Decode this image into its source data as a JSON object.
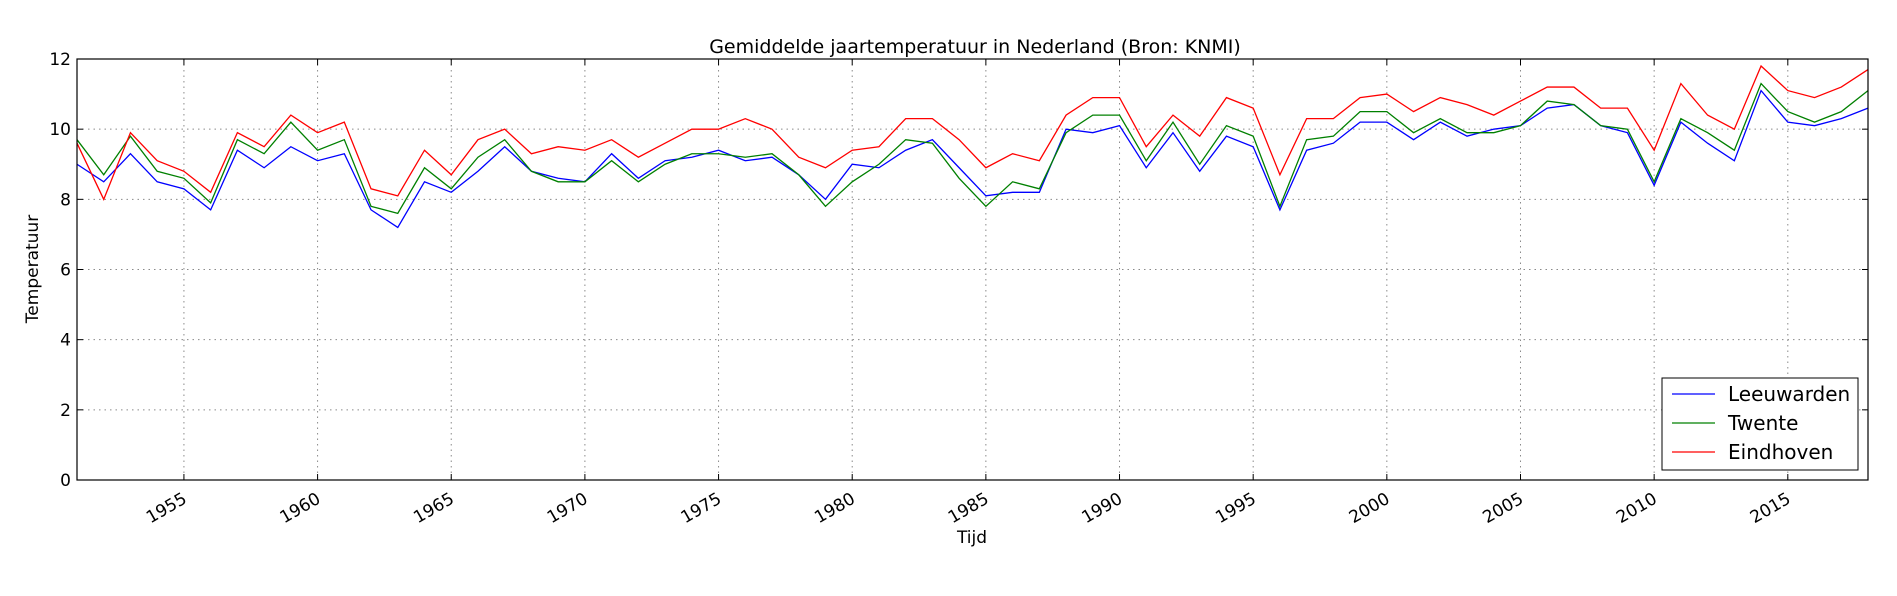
{
  "chart_data": {
    "type": "line",
    "title": "Gemiddelde jaartemperatuur in Nederland (Bron: KNMI)",
    "xlabel": "Tijd",
    "ylabel": "Temperatuur",
    "xlim": [
      1951,
      2018
    ],
    "ylim": [
      0,
      12
    ],
    "xticks": [
      1955,
      1960,
      1965,
      1970,
      1975,
      1980,
      1985,
      1990,
      1995,
      2000,
      2005,
      2010,
      2015
    ],
    "xtick_labels": [
      "1955",
      "1960",
      "1965",
      "1970",
      "1975",
      "1980",
      "1985",
      "1990",
      "1995",
      "2000",
      "2005",
      "2010",
      "2015"
    ],
    "yticks": [
      0,
      2,
      4,
      6,
      8,
      10,
      12
    ],
    "ytick_labels": [
      "0",
      "2",
      "4",
      "6",
      "8",
      "10",
      "12"
    ],
    "grid": true,
    "legend_position": "lower-right",
    "x": [
      1951,
      1952,
      1953,
      1954,
      1955,
      1956,
      1957,
      1958,
      1959,
      1960,
      1961,
      1962,
      1963,
      1964,
      1965,
      1966,
      1967,
      1968,
      1969,
      1970,
      1971,
      1972,
      1973,
      1974,
      1975,
      1976,
      1977,
      1978,
      1979,
      1980,
      1981,
      1982,
      1983,
      1984,
      1985,
      1986,
      1987,
      1988,
      1989,
      1990,
      1991,
      1992,
      1993,
      1994,
      1995,
      1996,
      1997,
      1998,
      1999,
      2000,
      2001,
      2002,
      2003,
      2004,
      2005,
      2006,
      2007,
      2008,
      2009,
      2010,
      2011,
      2012,
      2013,
      2014,
      2015,
      2016,
      2017,
      2018
    ],
    "series": [
      {
        "name": "Leeuwarden",
        "color": "#0000ff",
        "values": [
          9.0,
          8.5,
          9.3,
          8.5,
          8.3,
          7.7,
          9.4,
          8.9,
          9.5,
          9.1,
          9.3,
          7.7,
          7.2,
          8.5,
          8.2,
          8.8,
          9.5,
          8.8,
          8.6,
          8.5,
          9.3,
          8.6,
          9.1,
          9.2,
          9.4,
          9.1,
          9.2,
          8.7,
          8.0,
          9.0,
          8.9,
          9.4,
          9.7,
          8.9,
          8.1,
          8.2,
          8.2,
          10.0,
          9.9,
          10.1,
          8.9,
          9.9,
          8.8,
          9.8,
          9.5,
          7.7,
          9.4,
          9.6,
          10.2,
          10.2,
          9.7,
          10.2,
          9.8,
          10.0,
          10.1,
          10.6,
          10.7,
          10.1,
          9.9,
          8.4,
          10.2,
          9.6,
          9.1,
          11.1,
          10.2,
          10.1,
          10.3,
          10.6
        ]
      },
      {
        "name": "Twente",
        "color": "#008000",
        "values": [
          9.7,
          8.7,
          9.8,
          8.8,
          8.6,
          7.9,
          9.7,
          9.3,
          10.2,
          9.4,
          9.7,
          7.8,
          7.6,
          8.9,
          8.3,
          9.2,
          9.7,
          8.8,
          8.5,
          8.5,
          9.1,
          8.5,
          9.0,
          9.3,
          9.3,
          9.2,
          9.3,
          8.7,
          7.8,
          8.5,
          9.0,
          9.7,
          9.6,
          8.6,
          7.8,
          8.5,
          8.3,
          9.9,
          10.4,
          10.4,
          9.1,
          10.2,
          9.0,
          10.1,
          9.8,
          7.8,
          9.7,
          9.8,
          10.5,
          10.5,
          9.9,
          10.3,
          9.9,
          9.9,
          10.1,
          10.8,
          10.7,
          10.1,
          10.0,
          8.5,
          10.3,
          9.9,
          9.4,
          11.3,
          10.5,
          10.2,
          10.5,
          11.1
        ]
      },
      {
        "name": "Eindhoven",
        "color": "#ff0000",
        "values": [
          9.6,
          8.0,
          9.9,
          9.1,
          8.8,
          8.2,
          9.9,
          9.5,
          10.4,
          9.9,
          10.2,
          8.3,
          8.1,
          9.4,
          8.7,
          9.7,
          10.0,
          9.3,
          9.5,
          9.4,
          9.7,
          9.2,
          9.6,
          10.0,
          10.0,
          10.3,
          10.0,
          9.2,
          8.9,
          9.4,
          9.5,
          10.3,
          10.3,
          9.7,
          8.9,
          9.3,
          9.1,
          10.4,
          10.9,
          10.9,
          9.5,
          10.4,
          9.8,
          10.9,
          10.6,
          8.7,
          10.3,
          10.3,
          10.9,
          11.0,
          10.5,
          10.9,
          10.7,
          10.4,
          10.8,
          11.2,
          11.2,
          10.6,
          10.6,
          9.4,
          11.3,
          10.4,
          10.0,
          11.8,
          11.1,
          10.9,
          11.2,
          11.7
        ]
      }
    ]
  }
}
